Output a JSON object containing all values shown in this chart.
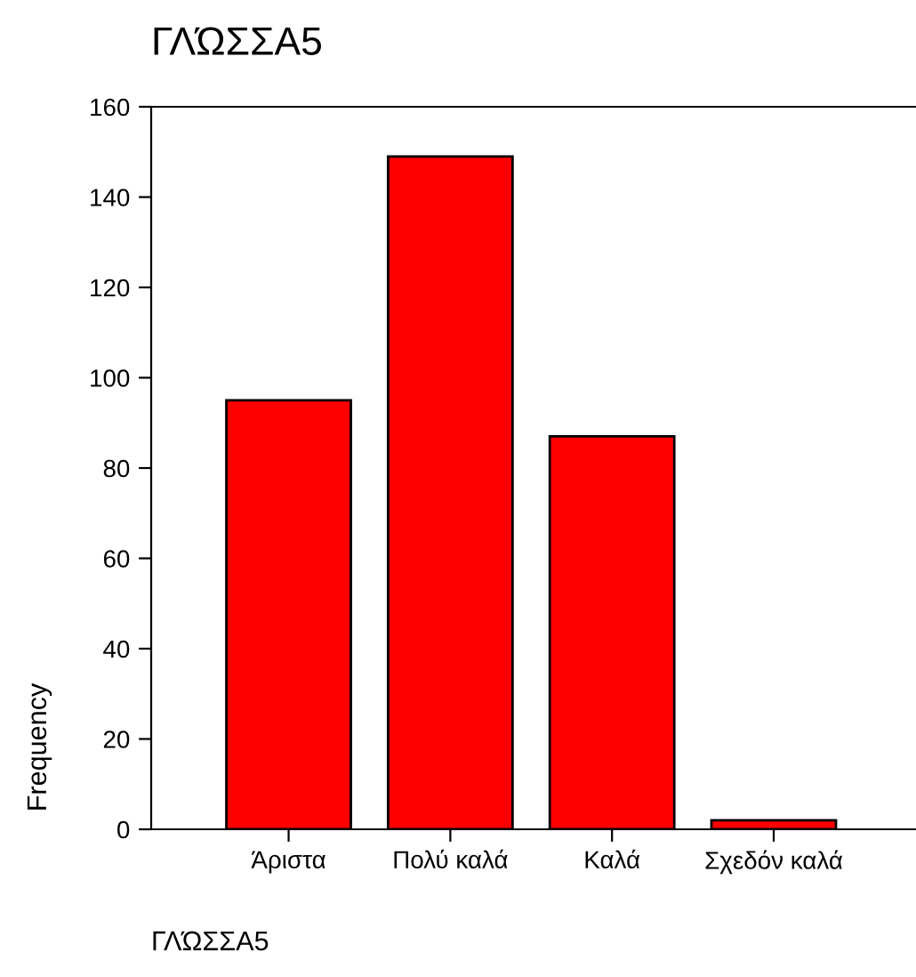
{
  "chart_data": {
    "type": "bar",
    "title": "ΓΛΏΣΣΑ5",
    "xlabel": "ΓΛΏΣΣΑ5",
    "ylabel": "Frequency",
    "categories": [
      "Άριστα",
      "Πολύ καλά",
      "Καλά",
      "Σχεδόν καλά"
    ],
    "values": [
      95,
      149,
      87,
      2
    ],
    "color": "#ff0000",
    "ylim": [
      0,
      160
    ],
    "yticks": [
      0,
      20,
      40,
      60,
      80,
      100,
      120,
      140,
      160
    ],
    "grid": false,
    "legend": false
  }
}
